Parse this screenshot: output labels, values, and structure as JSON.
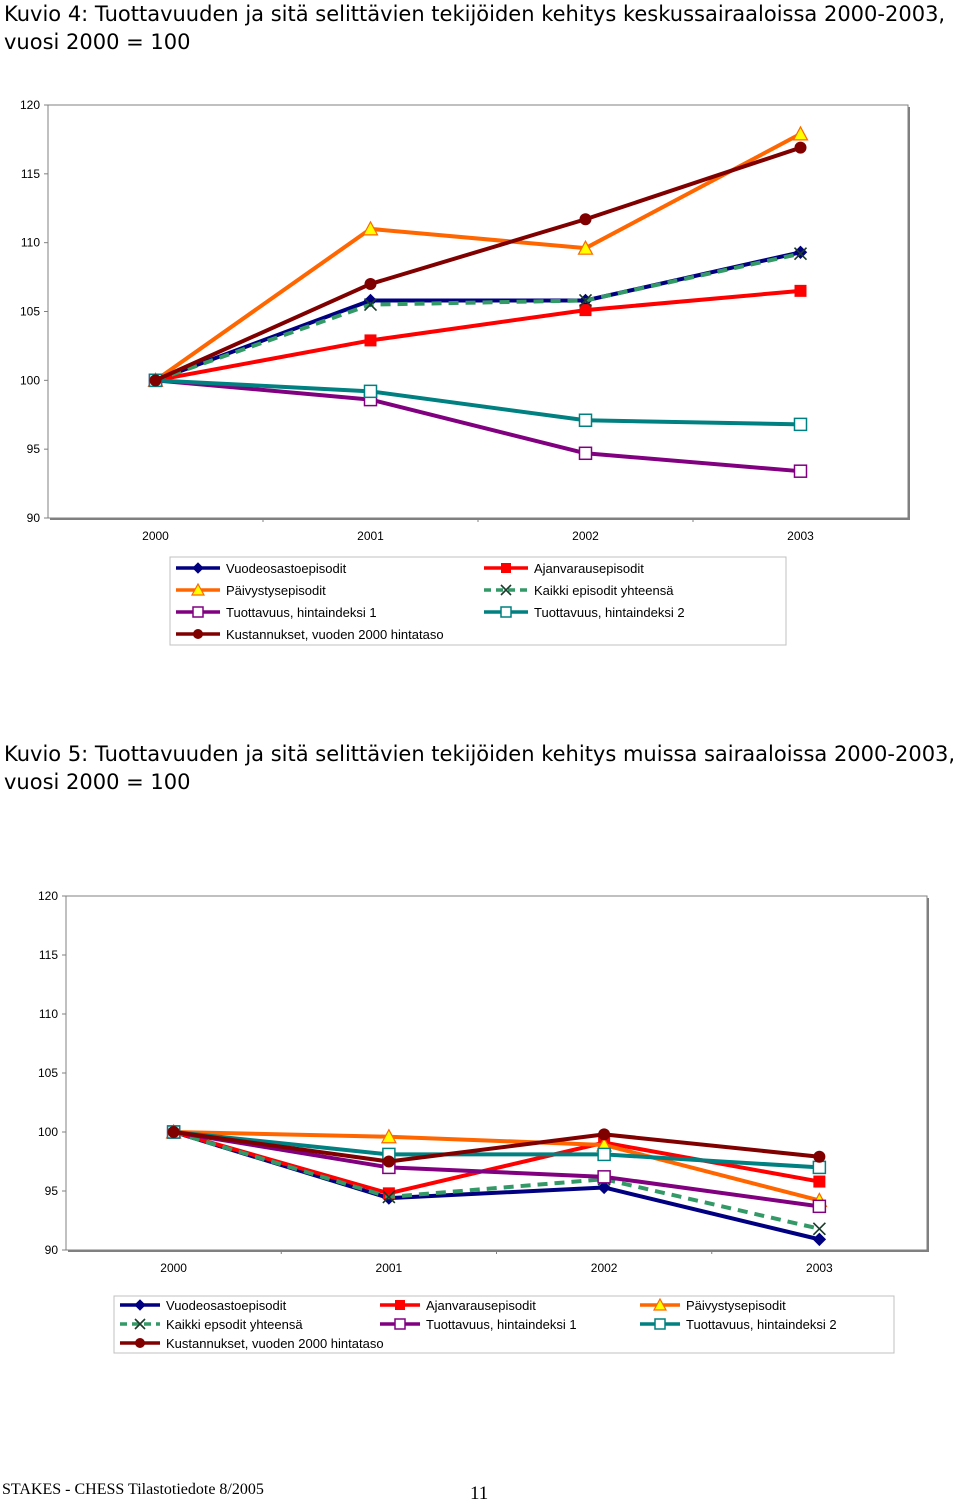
{
  "captions": {
    "figure4": "Kuvio 4:   Tuottavuuden ja sitä selittävien tekijöiden kehitys keskussairaaloissa 2000-2003, vuosi 2000 = 100",
    "figure5": "Kuvio 5: Tuottavuuden ja sitä selittävien tekijöiden kehitys muissa sairaaloissa 2000-2003, vuosi 2000 = 100"
  },
  "footer": {
    "source": "STAKES - CHESS  Tilastotiedote 8/2005",
    "page": "11"
  },
  "chart_data": [
    {
      "type": "line",
      "categories": [
        "2000",
        "2001",
        "2002",
        "2003"
      ],
      "ylim": [
        90,
        120
      ],
      "yticks": [
        "90",
        "95",
        "100",
        "105",
        "110",
        "115",
        "120"
      ],
      "grid": false,
      "legend_placement": "bottom",
      "series": [
        {
          "name": "Vuodeosastoepisodit",
          "values": [
            100,
            105.8,
            105.8,
            109.3
          ],
          "color": "#000080",
          "marker": "diamond",
          "dash": false
        },
        {
          "name": "Ajanvarausepisodit",
          "values": [
            100,
            102.9,
            105.1,
            106.5
          ],
          "color": "#ff0000",
          "marker": "square",
          "dash": false
        },
        {
          "name": "Päivystysepisodit",
          "values": [
            100,
            111.0,
            109.6,
            117.9
          ],
          "color": "#ff6600",
          "marker": "triangle",
          "dash": false
        },
        {
          "name": "Kaikki episodit yhteensä",
          "values": [
            100,
            105.5,
            105.8,
            109.2
          ],
          "color": "#339966",
          "marker": "x",
          "dash": true
        },
        {
          "name": "Tuottavuus, hintaindeksi 1",
          "values": [
            100,
            98.6,
            94.7,
            93.4
          ],
          "color": "#800080",
          "marker": "open-square",
          "dash": false
        },
        {
          "name": "Tuottavuus, hintaindeksi 2",
          "values": [
            100,
            99.2,
            97.1,
            96.8
          ],
          "color": "#008080",
          "marker": "open-square",
          "dash": false
        },
        {
          "name": "Kustannukset, vuoden 2000 hintataso",
          "values": [
            100,
            107.0,
            111.7,
            116.9
          ],
          "color": "#800000",
          "marker": "circle",
          "dash": false
        }
      ]
    },
    {
      "type": "line",
      "categories": [
        "2000",
        "2001",
        "2002",
        "2003"
      ],
      "ylim": [
        90,
        120
      ],
      "yticks": [
        "90",
        "95",
        "100",
        "105",
        "110",
        "115",
        "120"
      ],
      "grid": false,
      "legend_placement": "bottom",
      "series": [
        {
          "name": "Vuodeosastoepisodit",
          "values": [
            100,
            94.4,
            95.3,
            90.9
          ],
          "color": "#000080",
          "marker": "diamond",
          "dash": false
        },
        {
          "name": "Ajanvarausepisodit",
          "values": [
            100,
            94.8,
            99.1,
            95.8
          ],
          "color": "#ff0000",
          "marker": "square",
          "dash": false
        },
        {
          "name": "Päivystysepisodit",
          "values": [
            100,
            99.6,
            98.9,
            94.2
          ],
          "color": "#ff6600",
          "marker": "triangle",
          "dash": false
        },
        {
          "name": "Kaikki epsodit yhteensä",
          "values": [
            100,
            94.5,
            96.0,
            91.8
          ],
          "color": "#339966",
          "marker": "x",
          "dash": true
        },
        {
          "name": "Tuottavuus, hintaindeksi 1",
          "values": [
            100,
            97.0,
            96.2,
            93.7
          ],
          "color": "#800080",
          "marker": "open-square",
          "dash": false
        },
        {
          "name": "Tuottavuus, hintaindeksi 2",
          "values": [
            100,
            98.1,
            98.1,
            97.0
          ],
          "color": "#008080",
          "marker": "open-square",
          "dash": false
        },
        {
          "name": "Kustannukset, vuoden 2000 hintataso",
          "values": [
            100,
            97.5,
            99.8,
            97.9
          ],
          "color": "#800000",
          "marker": "circle",
          "dash": false
        }
      ]
    }
  ]
}
